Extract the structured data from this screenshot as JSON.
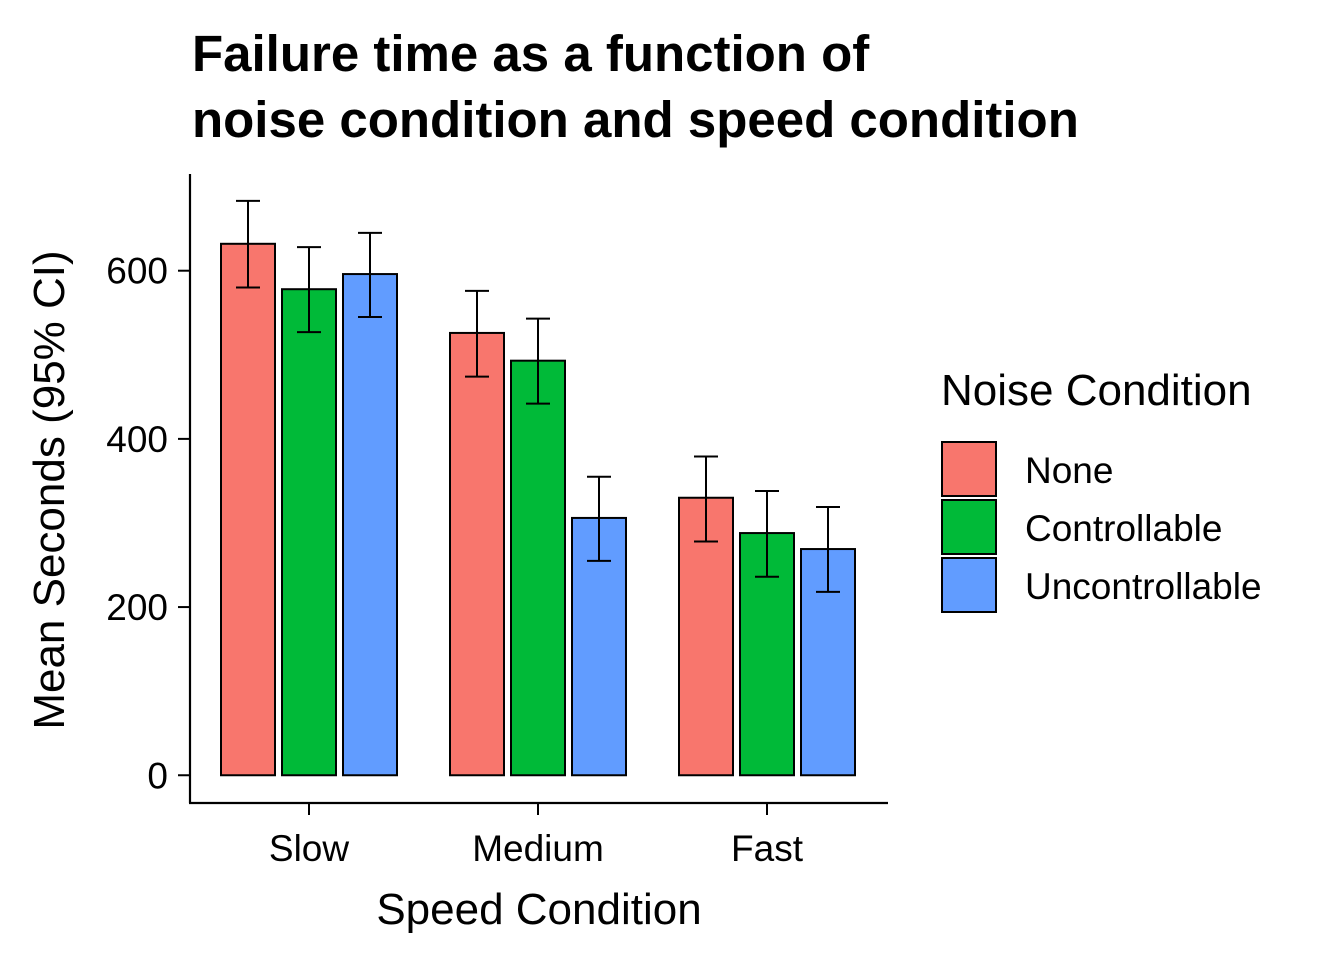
{
  "chart_data": {
    "type": "bar",
    "title_lines": [
      "Failure time as a function of",
      "noise condition and speed condition"
    ],
    "xlabel": "Speed Condition",
    "ylabel": "Mean Seconds (95% CI)",
    "categories": [
      "Slow",
      "Medium",
      "Fast"
    ],
    "ylim": [
      -33,
      715
    ],
    "yticks": [
      0,
      200,
      400,
      600
    ],
    "legend_title": "Noise Condition",
    "legend_position": "right",
    "grid": false,
    "series": [
      {
        "name": "None",
        "color": "#F8766D",
        "values": [
          632,
          526,
          330
        ],
        "ci_low": [
          580,
          474,
          278
        ],
        "ci_high": [
          683,
          576,
          379
        ]
      },
      {
        "name": "Controllable",
        "color": "#00BA38",
        "values": [
          578,
          493,
          288
        ],
        "ci_low": [
          527,
          442,
          236
        ],
        "ci_high": [
          628,
          543,
          338
        ]
      },
      {
        "name": "Uncontrollable",
        "color": "#619CFF",
        "values": [
          596,
          306,
          269
        ],
        "ci_low": [
          545,
          255,
          218
        ],
        "ci_high": [
          645,
          355,
          319
        ]
      }
    ]
  }
}
